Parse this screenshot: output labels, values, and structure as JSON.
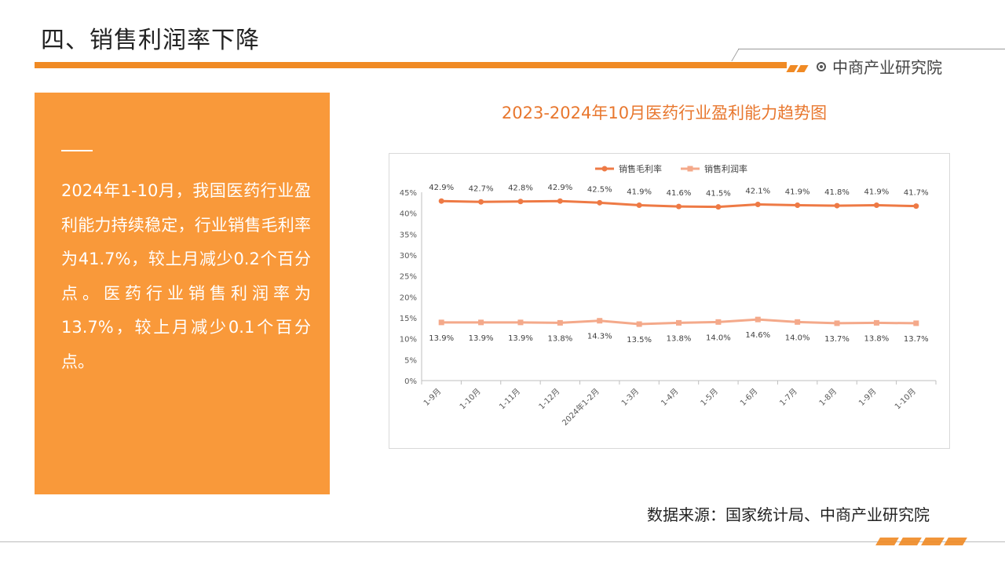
{
  "header": {
    "title": "四、销售利润率下降",
    "brand": "中商产业研究院"
  },
  "panel": {
    "text": "2024年1-10月，我国医药行业盈利能力持续稳定，行业销售毛利率为41.7%，较上月减少0.2个百分点。医药行业销售利润率为13.7%，较上月减少0.1个百分点。"
  },
  "footer": {
    "source": "数据来源：国家统计局、中商产业研究院"
  },
  "colors": {
    "accent": "#f08a24",
    "gross": "#ee7a45",
    "profit": "#f4a98a",
    "panel": "#f9993a"
  },
  "chart_data": {
    "type": "line",
    "title": "2023-2024年10月医药行业盈利能力趋势图",
    "categories": [
      "1-9月",
      "1-10月",
      "1-11月",
      "1-12月",
      "2024年1-2月",
      "1-3月",
      "1-4月",
      "1-5月",
      "1-6月",
      "1-7月",
      "1-8月",
      "1-9月",
      "1-10月"
    ],
    "series": [
      {
        "name": "销售毛利率",
        "values": [
          42.9,
          42.7,
          42.8,
          42.9,
          42.5,
          41.9,
          41.6,
          41.5,
          42.1,
          41.9,
          41.8,
          41.9,
          41.7
        ],
        "labels": [
          "42.9%",
          "42.7%",
          "42.8%",
          "42.9%",
          "42.5%",
          "41.9%",
          "41.6%",
          "41.5%",
          "42.1%",
          "41.9%",
          "41.8%",
          "41.9%",
          "41.7%"
        ]
      },
      {
        "name": "销售利润率",
        "values": [
          13.9,
          13.9,
          13.9,
          13.8,
          14.3,
          13.5,
          13.8,
          14.0,
          14.6,
          14.0,
          13.7,
          13.8,
          13.7
        ],
        "labels": [
          "13.9%",
          "13.9%",
          "13.9%",
          "13.8%",
          "14.3%",
          "13.5%",
          "13.8%",
          "14.0%",
          "14.6%",
          "14.0%",
          "13.7%",
          "13.8%",
          "13.7%"
        ]
      }
    ],
    "yticks": [
      "0%",
      "5%",
      "10%",
      "15%",
      "20%",
      "25%",
      "30%",
      "35%",
      "40%",
      "45%"
    ],
    "ylim": [
      0,
      45
    ],
    "legend": "top-center",
    "grid": false
  }
}
